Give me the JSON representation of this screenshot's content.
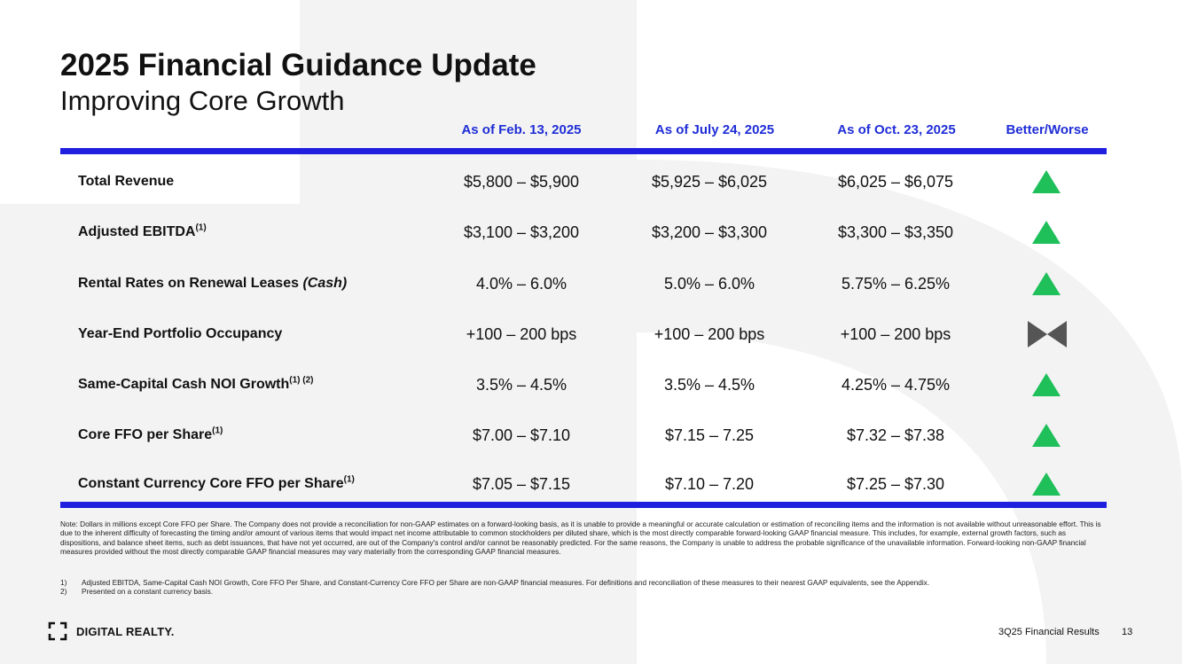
{
  "title": "2025 Financial Guidance Update",
  "subtitle": "Improving Core Growth",
  "columns": [
    "As of Feb. 13, 2025",
    "As of July 24, 2025",
    "As of Oct. 23, 2025",
    "Better/Worse"
  ],
  "rows": [
    {
      "label": "Total Revenue",
      "sup": "",
      "suffix": "",
      "values": [
        "$5,800 – $5,900",
        "$5,925 – $6,025",
        "$6,025 – $6,075"
      ],
      "indicator": "better"
    },
    {
      "label": "Adjusted EBITDA",
      "sup": "(1)",
      "suffix": "",
      "values": [
        "$3,100 – $3,200",
        "$3,200 – $3,300",
        "$3,300 – $3,350"
      ],
      "indicator": "better"
    },
    {
      "label": "Rental Rates on Renewal Leases ",
      "sup": "",
      "suffix": "(Cash)",
      "values": [
        "4.0% – 6.0%",
        "5.0% – 6.0%",
        "5.75% – 6.25%"
      ],
      "indicator": "better"
    },
    {
      "label": "Year-End Portfolio Occupancy",
      "sup": "",
      "suffix": "",
      "values": [
        "+100 – 200 bps",
        "+100 – 200 bps",
        "+100 – 200 bps"
      ],
      "indicator": "unchanged"
    },
    {
      "label": "Same-Capital Cash NOI Growth",
      "sup": "(1) (2)",
      "suffix": "",
      "values": [
        "3.5% – 4.5%",
        "3.5% – 4.5%",
        "4.25% – 4.75%"
      ],
      "indicator": "better"
    },
    {
      "label": "Core FFO per Share",
      "sup": "(1)",
      "suffix": "",
      "values": [
        "$7.00 – $7.10",
        "$7.15 – 7.25",
        "$7.32 – $7.38"
      ],
      "indicator": "better"
    },
    {
      "label": "Constant Currency Core FFO per Share",
      "sup": "(1)",
      "suffix": "",
      "values": [
        "$7.05 – $7.15",
        "$7.10 – 7.20",
        "$7.25 – $7.30"
      ],
      "indicator": "better"
    }
  ],
  "note": "Note: Dollars in millions except Core FFO per Share. The Company does not provide a reconciliation for non-GAAP estimates on a forward-looking basis, as it is unable to provide a meaningful or accurate calculation or estimation of reconciling items and the information is not available without unreasonable effort. This is due to the inherent difficulty of forecasting the timing and/or amount of various items that would impact net income attributable to common stockholders per diluted share, which is the most directly comparable forward-looking GAAP financial measure. This includes, for example, external growth factors, such as dispositions, and balance sheet items, such as debt issuances, that have not yet occurred, are out of the Company's control and/or cannot be reasonably predicted. For the same reasons, the Company is unable to address the probable significance of the unavailable information. Forward-looking non-GAAP financial measures provided without the most directly comparable GAAP financial measures may vary materially from the corresponding GAAP financial measures.",
  "footnotes": [
    {
      "num": "1)",
      "text": "Adjusted EBITDA, Same-Capital Cash NOI Growth, Core FFO Per Share, and Constant-Currency Core FFO per Share are non-GAAP financial measures. For definitions and reconciliation of these measures to their nearest GAAP equivalents, see the Appendix."
    },
    {
      "num": "2)",
      "text": "Presented on a constant currency basis."
    }
  ],
  "logo": {
    "text": "DIGITAL REALTY."
  },
  "footer": {
    "text": "3Q25 Financial Results",
    "page": "13"
  },
  "colors": {
    "accent_blue": "#1f1fe0",
    "header_blue": "#1f2dd6",
    "better_green": "#1fbf5a",
    "unchanged_gray": "#555555",
    "bg_shape": "#f3f3f3"
  }
}
